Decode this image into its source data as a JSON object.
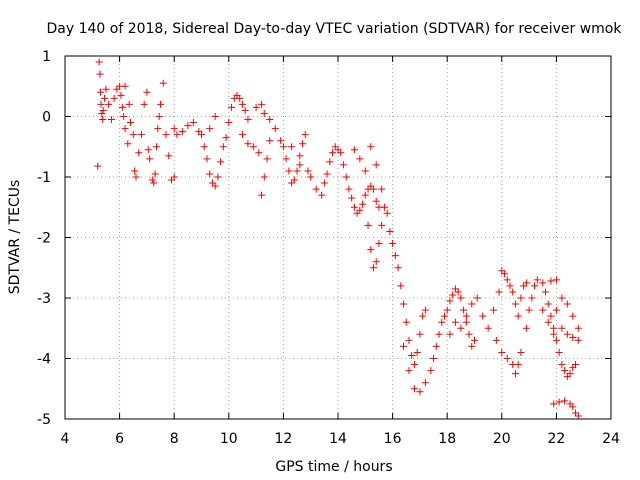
{
  "chart_data": {
    "type": "scatter",
    "title": "Day 140 of 2018, Sidereal Day-to-day VTEC variation (SDTVAR) for receiver wmok",
    "xlabel": "GPS time / hours",
    "ylabel": "SDTVAR / TECUs",
    "xlim": [
      4,
      24
    ],
    "ylim": [
      -5,
      1
    ],
    "xticks": [
      "4",
      "6",
      "8",
      "10",
      "12",
      "14",
      "16",
      "18",
      "20",
      "22",
      "24"
    ],
    "yticks": [
      "1",
      "0",
      "-1",
      "-2",
      "-3",
      "-4",
      "-5"
    ],
    "grid": true,
    "marker": "+",
    "color": "#ff0000",
    "series": [
      {
        "name": "SDTVAR",
        "points": [
          [
            5.2,
            -0.82
          ],
          [
            5.25,
            0.9
          ],
          [
            5.28,
            0.7
          ],
          [
            5.3,
            0.4
          ],
          [
            5.32,
            0.2
          ],
          [
            5.35,
            0.05
          ],
          [
            5.38,
            -0.05
          ],
          [
            5.4,
            0.1
          ],
          [
            5.45,
            0.3
          ],
          [
            5.5,
            0.45
          ],
          [
            5.6,
            0.2
          ],
          [
            5.7,
            -0.05
          ],
          [
            5.8,
            0.3
          ],
          [
            5.9,
            0.45
          ],
          [
            6.0,
            0.5
          ],
          [
            6.05,
            0.35
          ],
          [
            6.1,
            0.15
          ],
          [
            6.15,
            0.0
          ],
          [
            6.2,
            -0.2
          ],
          [
            6.3,
            -0.45
          ],
          [
            6.2,
            0.5
          ],
          [
            6.35,
            0.2
          ],
          [
            6.4,
            -0.1
          ],
          [
            6.5,
            -0.3
          ],
          [
            6.55,
            -0.9
          ],
          [
            6.6,
            -1.0
          ],
          [
            6.7,
            -0.6
          ],
          [
            6.8,
            -0.3
          ],
          [
            6.9,
            0.2
          ],
          [
            7.0,
            0.4
          ],
          [
            7.05,
            -0.55
          ],
          [
            7.1,
            -0.7
          ],
          [
            7.2,
            -1.05
          ],
          [
            7.25,
            -1.1
          ],
          [
            7.3,
            -0.95
          ],
          [
            7.35,
            -0.5
          ],
          [
            7.4,
            -0.2
          ],
          [
            7.45,
            0.0
          ],
          [
            7.5,
            0.2
          ],
          [
            7.6,
            0.55
          ],
          [
            7.7,
            -0.3
          ],
          [
            7.8,
            -0.65
          ],
          [
            7.9,
            -1.05
          ],
          [
            8.0,
            -1.0
          ],
          [
            8.0,
            -0.2
          ],
          [
            8.1,
            -0.3
          ],
          [
            8.3,
            -0.25
          ],
          [
            8.5,
            -0.15
          ],
          [
            8.7,
            -0.1
          ],
          [
            8.9,
            -0.25
          ],
          [
            9.0,
            -0.3
          ],
          [
            9.1,
            -0.5
          ],
          [
            9.2,
            -0.7
          ],
          [
            9.3,
            -0.95
          ],
          [
            9.4,
            -1.1
          ],
          [
            9.5,
            -1.15
          ],
          [
            9.6,
            -1.0
          ],
          [
            9.7,
            -0.75
          ],
          [
            9.3,
            -0.2
          ],
          [
            9.5,
            0.0
          ],
          [
            9.8,
            -0.5
          ],
          [
            9.9,
            -0.35
          ],
          [
            10.0,
            -0.1
          ],
          [
            10.1,
            0.15
          ],
          [
            10.2,
            0.3
          ],
          [
            10.3,
            0.35
          ],
          [
            10.4,
            0.3
          ],
          [
            10.5,
            0.2
          ],
          [
            10.6,
            0.1
          ],
          [
            10.7,
            -0.05
          ],
          [
            10.5,
            -0.3
          ],
          [
            10.7,
            -0.45
          ],
          [
            10.9,
            -0.5
          ],
          [
            11.1,
            -0.6
          ],
          [
            11.2,
            -1.3
          ],
          [
            11.3,
            -1.0
          ],
          [
            11.4,
            -0.7
          ],
          [
            11.5,
            -0.4
          ],
          [
            11.0,
            0.15
          ],
          [
            11.2,
            0.2
          ],
          [
            11.3,
            0.05
          ],
          [
            11.5,
            -0.05
          ],
          [
            11.7,
            -0.2
          ],
          [
            11.9,
            -0.4
          ],
          [
            12.0,
            -0.5
          ],
          [
            12.1,
            -0.7
          ],
          [
            12.2,
            -0.9
          ],
          [
            12.3,
            -1.1
          ],
          [
            12.4,
            -1.05
          ],
          [
            12.5,
            -0.9
          ],
          [
            12.6,
            -0.65
          ],
          [
            12.7,
            -0.45
          ],
          [
            12.8,
            -0.3
          ],
          [
            12.3,
            -0.5
          ],
          [
            12.6,
            -0.8
          ],
          [
            12.9,
            -0.9
          ],
          [
            13.0,
            -1.0
          ],
          [
            13.2,
            -1.2
          ],
          [
            13.4,
            -1.3
          ],
          [
            13.5,
            -1.1
          ],
          [
            13.6,
            -0.95
          ],
          [
            13.7,
            -0.75
          ],
          [
            13.8,
            -0.6
          ],
          [
            13.9,
            -0.5
          ],
          [
            14.0,
            -0.55
          ],
          [
            14.1,
            -0.6
          ],
          [
            14.2,
            -0.8
          ],
          [
            14.3,
            -1.0
          ],
          [
            14.4,
            -1.2
          ],
          [
            14.5,
            -1.35
          ],
          [
            14.6,
            -1.5
          ],
          [
            14.7,
            -1.6
          ],
          [
            14.8,
            -1.55
          ],
          [
            14.9,
            -1.45
          ],
          [
            15.0,
            -1.3
          ],
          [
            15.1,
            -1.2
          ],
          [
            15.2,
            -1.15
          ],
          [
            15.3,
            -1.2
          ],
          [
            15.4,
            -1.4
          ],
          [
            15.5,
            -1.5
          ],
          [
            14.6,
            -0.55
          ],
          [
            14.8,
            -0.7
          ],
          [
            15.0,
            -0.9
          ],
          [
            15.1,
            -1.8
          ],
          [
            15.2,
            -2.2
          ],
          [
            15.3,
            -2.5
          ],
          [
            15.4,
            -2.4
          ],
          [
            15.5,
            -2.1
          ],
          [
            15.6,
            -1.8
          ],
          [
            15.7,
            -1.5
          ],
          [
            15.2,
            -0.5
          ],
          [
            15.4,
            -0.8
          ],
          [
            15.6,
            -1.2
          ],
          [
            15.8,
            -1.6
          ],
          [
            15.9,
            -1.9
          ],
          [
            16.0,
            -2.1
          ],
          [
            16.1,
            -2.3
          ],
          [
            16.2,
            -2.5
          ],
          [
            16.3,
            -2.8
          ],
          [
            16.4,
            -3.1
          ],
          [
            16.5,
            -3.4
          ],
          [
            16.6,
            -3.7
          ],
          [
            16.7,
            -3.95
          ],
          [
            16.8,
            -4.1
          ],
          [
            16.9,
            -3.9
          ],
          [
            17.0,
            -3.6
          ],
          [
            17.1,
            -3.3
          ],
          [
            17.2,
            -3.2
          ],
          [
            16.4,
            -3.8
          ],
          [
            16.6,
            -4.2
          ],
          [
            16.8,
            -4.5
          ],
          [
            17.0,
            -4.55
          ],
          [
            17.2,
            -4.4
          ],
          [
            17.4,
            -4.2
          ],
          [
            17.5,
            -4.0
          ],
          [
            17.6,
            -3.8
          ],
          [
            17.7,
            -3.6
          ],
          [
            17.8,
            -3.4
          ],
          [
            17.9,
            -3.3
          ],
          [
            18.0,
            -3.2
          ],
          [
            18.1,
            -3.05
          ],
          [
            18.2,
            -2.95
          ],
          [
            18.3,
            -2.85
          ],
          [
            18.4,
            -2.9
          ],
          [
            18.5,
            -3.0
          ],
          [
            18.6,
            -3.2
          ],
          [
            18.7,
            -3.4
          ],
          [
            18.8,
            -3.6
          ],
          [
            18.9,
            -3.8
          ],
          [
            19.0,
            -3.7
          ],
          [
            18.1,
            -3.6
          ],
          [
            18.3,
            -3.4
          ],
          [
            18.5,
            -3.5
          ],
          [
            18.7,
            -3.3
          ],
          [
            18.9,
            -3.1
          ],
          [
            19.1,
            -3.0
          ],
          [
            19.3,
            -3.3
          ],
          [
            19.5,
            -3.5
          ],
          [
            19.7,
            -3.2
          ],
          [
            19.9,
            -2.9
          ],
          [
            20.0,
            -2.55
          ],
          [
            20.1,
            -2.6
          ],
          [
            20.2,
            -2.7
          ],
          [
            20.3,
            -2.8
          ],
          [
            20.4,
            -2.9
          ],
          [
            20.5,
            -3.1
          ],
          [
            20.6,
            -3.3
          ],
          [
            20.7,
            -3.0
          ],
          [
            20.8,
            -2.8
          ],
          [
            20.9,
            -2.75
          ],
          [
            19.8,
            -3.7
          ],
          [
            20.0,
            -3.9
          ],
          [
            20.2,
            -4.0
          ],
          [
            20.4,
            -4.1
          ],
          [
            20.5,
            -4.25
          ],
          [
            20.6,
            -4.1
          ],
          [
            20.7,
            -3.9
          ],
          [
            20.9,
            -3.5
          ],
          [
            21.0,
            -3.2
          ],
          [
            21.1,
            -3.0
          ],
          [
            21.2,
            -2.8
          ],
          [
            21.3,
            -2.7
          ],
          [
            21.5,
            -2.75
          ],
          [
            21.6,
            -2.9
          ],
          [
            21.7,
            -3.1
          ],
          [
            21.8,
            -3.3
          ],
          [
            21.9,
            -3.5
          ],
          [
            22.0,
            -3.7
          ],
          [
            22.1,
            -3.9
          ],
          [
            22.2,
            -4.1
          ],
          [
            22.3,
            -4.2
          ],
          [
            22.4,
            -4.3
          ],
          [
            22.5,
            -4.25
          ],
          [
            22.6,
            -4.15
          ],
          [
            22.7,
            -4.1
          ],
          [
            21.5,
            -3.2
          ],
          [
            21.7,
            -3.4
          ],
          [
            21.9,
            -3.6
          ],
          [
            22.0,
            -3.2
          ],
          [
            22.2,
            -3.0
          ],
          [
            22.4,
            -3.1
          ],
          [
            22.6,
            -3.3
          ],
          [
            22.8,
            -3.5
          ],
          [
            22.8,
            -3.7
          ],
          [
            22.6,
            -3.65
          ],
          [
            22.4,
            -3.6
          ],
          [
            22.2,
            -3.5
          ],
          [
            21.9,
            -4.75
          ],
          [
            22.1,
            -4.72
          ],
          [
            22.3,
            -4.7
          ],
          [
            22.5,
            -4.75
          ],
          [
            22.6,
            -4.8
          ],
          [
            22.7,
            -4.9
          ],
          [
            22.8,
            -4.95
          ],
          [
            22.0,
            -2.7
          ],
          [
            21.8,
            -2.72
          ]
        ]
      }
    ]
  }
}
